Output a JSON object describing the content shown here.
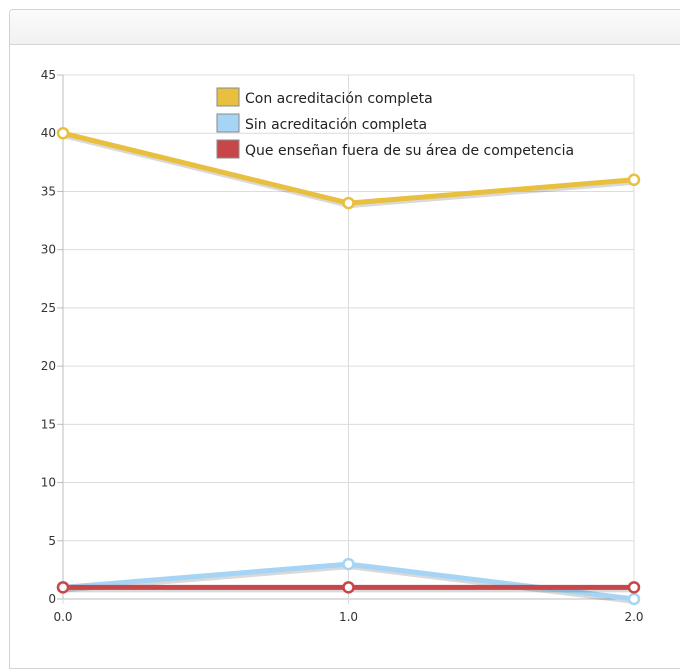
{
  "chart_data": {
    "type": "line",
    "x": [
      0.0,
      1.0,
      2.0
    ],
    "x_tick_labels": [
      "0.0",
      "1.0",
      "2.0"
    ],
    "y_ticks": [
      0,
      5,
      10,
      15,
      20,
      25,
      30,
      35,
      40,
      45
    ],
    "ylim": [
      0,
      45
    ],
    "xlim": [
      0,
      2
    ],
    "grid": true,
    "legend_position": "top-center",
    "series": [
      {
        "name": "Con acreditación completa",
        "values": [
          40,
          34,
          36
        ],
        "color": "#e8bf3e"
      },
      {
        "name": "Sin acreditación completa",
        "values": [
          1,
          3,
          0
        ],
        "color": "#a6d4f5"
      },
      {
        "name": "Que enseñan fuera de su área de competencia",
        "values": [
          1,
          1,
          1
        ],
        "color": "#c8454a"
      }
    ]
  }
}
